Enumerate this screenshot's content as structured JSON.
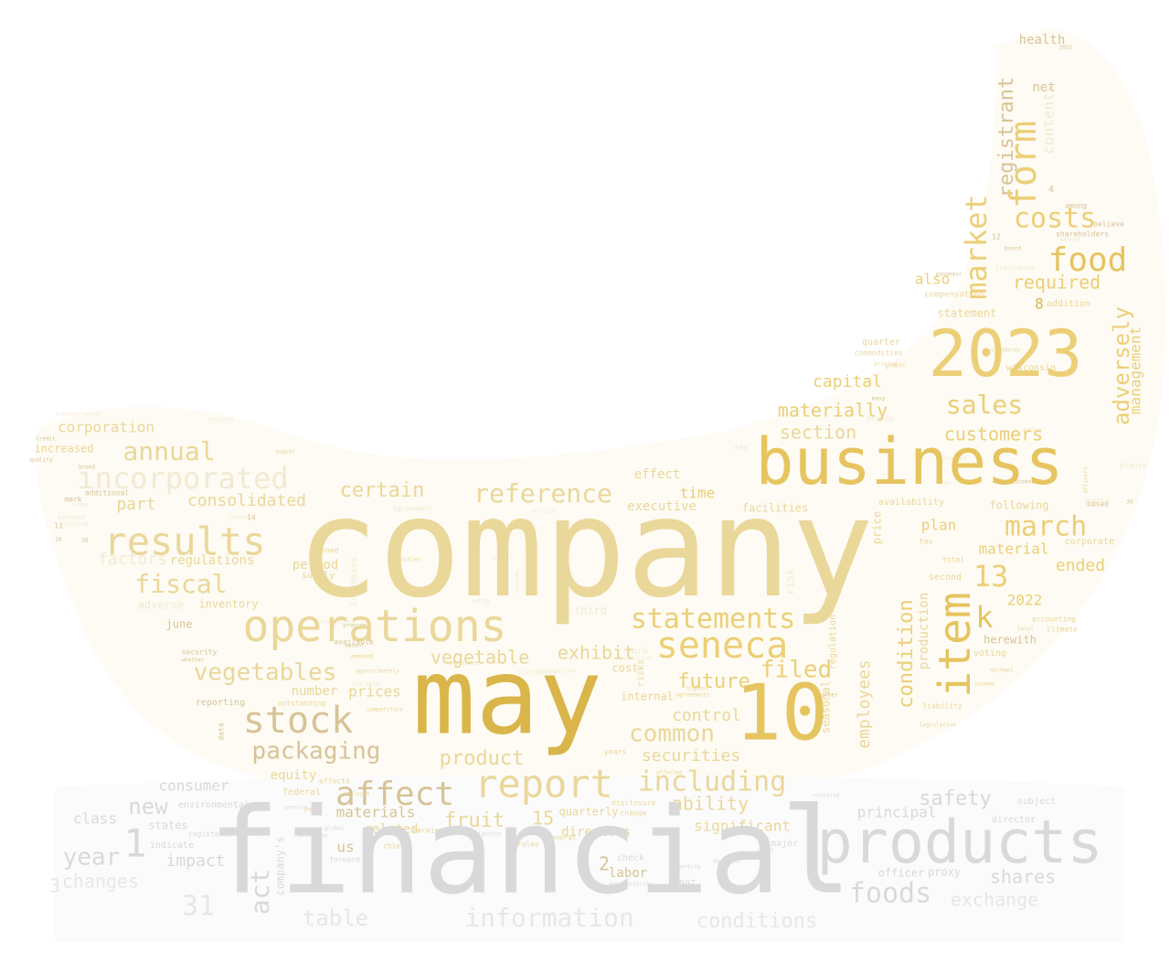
{
  "palette": {
    "gold_dark": "#d9b54a",
    "gold": "#e6c45f",
    "gold_light": "#eccf77",
    "gold_pale": "#ead79a",
    "tan": "#d7c398",
    "grey": "#d9d9d9",
    "grey_light": "#e7e7e7",
    "faint": "#f1ead3"
  },
  "words": [
    "company",
    "financial",
    "may",
    "business",
    "products",
    "2023",
    "10",
    "operations",
    "results",
    "report",
    "item",
    "form",
    "stock",
    "affect",
    "incorporated",
    "food",
    "13",
    "k",
    "seneca",
    "statements",
    "market",
    "including",
    "costs",
    "sales",
    "march",
    "fiscal",
    "annual",
    "reference",
    "vegetables",
    "packaging",
    "product",
    "common",
    "filed",
    "future",
    "certain",
    "adversely",
    "registrant",
    "foods",
    "safety",
    "consolidated",
    "vegetable",
    "exhibit",
    "customers",
    "materially",
    "control",
    "section",
    "required",
    "capital",
    "ability",
    "securities",
    "fruit",
    "new",
    "year",
    "1",
    "act",
    "shares",
    "information",
    "conditions",
    "table",
    "31",
    "changes",
    "impact",
    "3",
    "class",
    "consumer",
    "corporation",
    "part",
    "factors",
    "regulations",
    "management",
    "condition",
    "employees",
    "ended",
    "material",
    "2022",
    "plan",
    "time",
    "executive",
    "facilities",
    "effect",
    "also",
    "contents",
    "health",
    "net",
    "principal",
    "exchange",
    "15",
    "materials",
    "2",
    "8",
    "directors",
    "significant",
    "quarterly",
    "related",
    "us",
    "labor",
    "states",
    "environmental",
    "equity",
    "period",
    "number",
    "prices",
    "inventory",
    "adverse",
    "june",
    "increased",
    "corporate",
    "following",
    "availability",
    "production",
    "wisconsin",
    "statement",
    "compensation",
    "quarter",
    "risk",
    "seasonal",
    "internal",
    "insurance",
    "shareholders",
    "addition",
    "among",
    "believe",
    "4",
    "effects",
    "check",
    "2007",
    "officer",
    "proxy",
    "director",
    "subject",
    "supply",
    "canned",
    "increases",
    "risks",
    "third",
    "york",
    "cost",
    "regulation",
    "price",
    "second",
    "total",
    "tax",
    "investor",
    "plants",
    "liability",
    "voting",
    "herewith",
    "accounting",
    "climate",
    "local",
    "michael",
    "income",
    "legislative",
    "weather",
    "based",
    "brands",
    "rules",
    "general",
    "years",
    "indicate",
    "registered",
    "forward",
    "document",
    "working",
    "extension",
    "major",
    "event",
    "restated",
    "federal",
    "party",
    "chief",
    "affected",
    "herein",
    "disclosure",
    "change",
    "manufacturing",
    "litigation",
    "global",
    "employee",
    "company's",
    "amount",
    "program",
    "approximately",
    "competitors",
    "whether",
    "security",
    "reporting",
    "outstanding",
    "transportation",
    "credit",
    "mark",
    "packaged",
    "additional",
    "brand",
    "cause",
    "quality",
    "august",
    "national",
    "commodities",
    "pricing",
    "growth",
    "standards",
    "pandemic",
    "board",
    "customer",
    "officers",
    "fda",
    "many",
    "14",
    "11",
    "12",
    "26",
    "36",
    "16",
    "2021",
    "highest",
    "agreement",
    "agreements",
    "compliance",
    "activities",
    "competitive",
    "distribution",
    "international",
    "fluctuations",
    "inflation",
    "amended",
    "available",
    "annual",
    "services",
    "systems",
    "vote",
    "green",
    "pension",
    "depend",
    "data",
    "demand",
    "energy",
    "interest",
    "fees",
    "relating"
  ]
}
